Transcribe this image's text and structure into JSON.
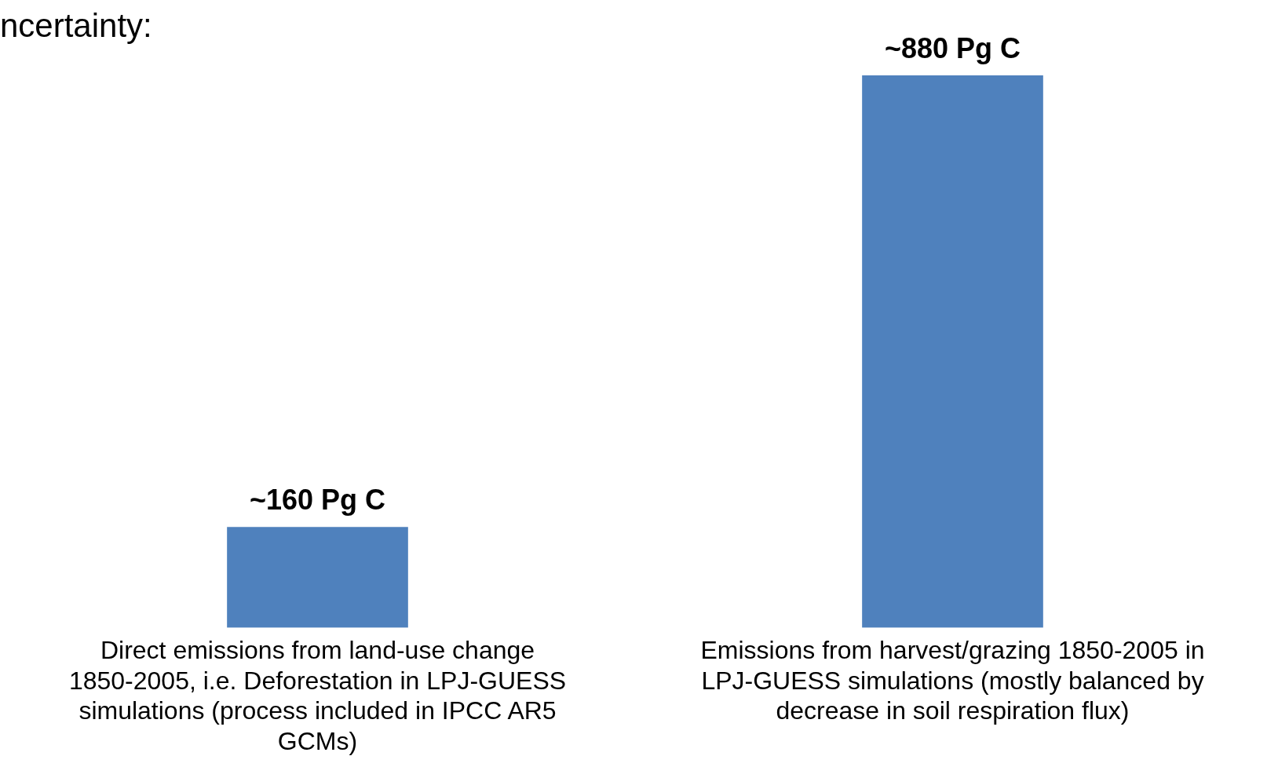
{
  "chart_data": {
    "type": "bar",
    "title": "ncertainty:",
    "categories": [
      "Direct emissions from land-use change 1850-2005, i.e. Deforestation in LPJ-GUESS simulations (process included in IPCC AR5 GCMs)",
      "Emissions from harvest/grazing 1850-2005 in LPJ-GUESS simulations (mostly balanced by decrease in soil respiration flux)"
    ],
    "values": [
      160,
      880
    ],
    "value_labels": [
      "~160 Pg C",
      "~880 Pg C"
    ],
    "color": "#4f81bd",
    "grid": false,
    "legend": false
  }
}
